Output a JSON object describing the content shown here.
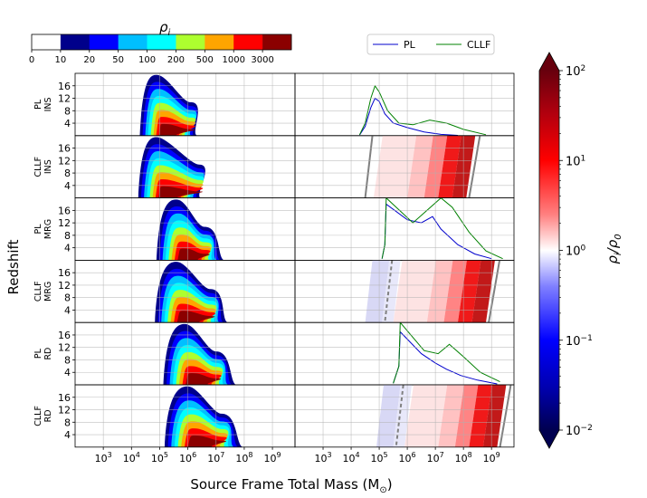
{
  "chart_data": {
    "type": "contour-grid",
    "xlabel": "Source Frame Total Mass (M",
    "xlabel_sub": "⊙",
    "xlabel_close": ")",
    "ylabel": "Redshift",
    "xlim_log10": [
      2,
      9.8
    ],
    "ylim": [
      0,
      20
    ],
    "x_ticks": [
      {
        "exp": 3,
        "label": "10",
        "sup": "3"
      },
      {
        "exp": 4,
        "label": "10",
        "sup": "4"
      },
      {
        "exp": 5,
        "label": "10",
        "sup": "5"
      },
      {
        "exp": 6,
        "label": "10",
        "sup": "6"
      },
      {
        "exp": 7,
        "label": "10",
        "sup": "7"
      },
      {
        "exp": 8,
        "label": "10",
        "sup": "8"
      },
      {
        "exp": 9,
        "label": "10",
        "sup": "9"
      }
    ],
    "y_ticks": [
      4,
      8,
      12,
      16
    ],
    "rows": [
      {
        "line1": "PL",
        "line2": "INS",
        "left_peak": 4.9,
        "left_width": 1.1,
        "second_peak": 6.1
      },
      {
        "line1": "CLLF",
        "line2": "INS",
        "left_peak": 4.9,
        "left_width": 1.2,
        "second_peak": 6.4
      },
      {
        "line1": "PL",
        "line2": "MRG",
        "left_peak": 5.6,
        "left_width": 1.3,
        "second_peak": 6.6
      },
      {
        "line1": "CLLF",
        "line2": "MRG",
        "left_peak": 5.6,
        "left_width": 1.4,
        "second_peak": 6.8
      },
      {
        "line1": "PL",
        "line2": "RD",
        "left_peak": 5.9,
        "left_width": 1.4,
        "second_peak": 7.0
      },
      {
        "line1": "CLLF",
        "line2": "RD",
        "left_peak": 6.0,
        "left_width": 1.5,
        "second_peak": 7.2
      }
    ],
    "top_colorbar": {
      "label": "ρ",
      "label_sub": "i",
      "boundaries": [
        "0",
        "10",
        "20",
        "50",
        "100",
        "200",
        "500",
        "1000",
        "3000"
      ],
      "colors": [
        "#ffffff",
        "#00008b",
        "#0000ff",
        "#00bfff",
        "#00ffff",
        "#adff2f",
        "#ffa500",
        "#ff0000",
        "#8b0000"
      ]
    },
    "right_colorbar": {
      "label": "ρ",
      "label_sub": "i",
      "label_den": "/ρ",
      "label_den_sub": "0",
      "ticks": [
        {
          "label": "10",
          "sup": "2",
          "exp": 2
        },
        {
          "label": "10",
          "sup": "1",
          "exp": 1
        },
        {
          "label": "10",
          "sup": "0",
          "exp": 0
        },
        {
          "label": "10",
          "sup": "−1",
          "exp": -1
        },
        {
          "label": "10",
          "sup": "−2",
          "exp": -2
        }
      ],
      "range_log10": [
        -2,
        2
      ]
    },
    "legend": {
      "items": [
        {
          "label": "PL",
          "color": "#0000cd"
        },
        {
          "label": "CLLF",
          "color": "#008000"
        }
      ]
    },
    "ratio_curves": {
      "PL": {
        "INS": [
          [
            4.3,
            0.2
          ],
          [
            4.5,
            3
          ],
          [
            4.7,
            9
          ],
          [
            4.85,
            12
          ],
          [
            5.0,
            11
          ],
          [
            5.2,
            7
          ],
          [
            5.5,
            4
          ],
          [
            6.0,
            2.6
          ],
          [
            6.6,
            1.2
          ],
          [
            7.2,
            0.4
          ],
          [
            7.8,
            0.1
          ]
        ],
        "MRG": [
          [
            5.1,
            0.5
          ],
          [
            5.2,
            5
          ],
          [
            5.25,
            18
          ],
          [
            6.0,
            13
          ],
          [
            6.5,
            12
          ],
          [
            6.9,
            14
          ],
          [
            7.2,
            10
          ],
          [
            7.8,
            5
          ],
          [
            8.4,
            2
          ],
          [
            9.0,
            0.5
          ]
        ],
        "RD": [
          [
            5.5,
            0.5
          ],
          [
            5.7,
            6
          ],
          [
            5.75,
            17
          ],
          [
            6.5,
            10
          ],
          [
            7.0,
            7
          ],
          [
            7.4,
            5
          ],
          [
            7.9,
            3
          ],
          [
            8.5,
            1.5
          ],
          [
            9.2,
            0.3
          ]
        ]
      },
      "CLLF": {
        "INS": [
          [
            4.3,
            0.3
          ],
          [
            4.5,
            4
          ],
          [
            4.7,
            12
          ],
          [
            4.85,
            16
          ],
          [
            5.0,
            14
          ],
          [
            5.3,
            8
          ],
          [
            5.7,
            4
          ],
          [
            6.2,
            3.5
          ],
          [
            6.8,
            5
          ],
          [
            7.4,
            4
          ],
          [
            8.0,
            2
          ],
          [
            8.8,
            0.3
          ]
        ],
        "MRG": [
          [
            5.1,
            0.5
          ],
          [
            5.2,
            5
          ],
          [
            5.25,
            20
          ],
          [
            6.2,
            12
          ],
          [
            6.7,
            16
          ],
          [
            7.2,
            20
          ],
          [
            7.6,
            17
          ],
          [
            8.2,
            9
          ],
          [
            8.8,
            3
          ],
          [
            9.4,
            0.5
          ]
        ],
        "RD": [
          [
            5.5,
            0.5
          ],
          [
            5.7,
            6
          ],
          [
            5.75,
            20
          ],
          [
            6.6,
            11
          ],
          [
            7.1,
            10
          ],
          [
            7.5,
            13
          ],
          [
            8.0,
            9
          ],
          [
            8.6,
            4
          ],
          [
            9.3,
            1
          ]
        ]
      }
    }
  }
}
